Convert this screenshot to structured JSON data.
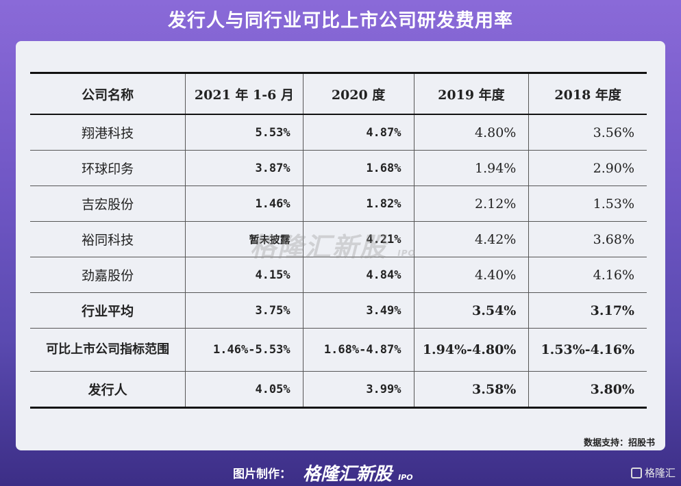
{
  "title": "发行人与同行业可比上市公司研发费用率",
  "table": {
    "headers": [
      "公司名称",
      "2021 年 1-6 月",
      "2020 度",
      "2019 年度",
      "2018 年度"
    ],
    "rows": [
      {
        "name": "翔港科技",
        "v2021": "5.53%",
        "v2020": "4.87%",
        "v2019": "4.80%",
        "v2018": "3.56%"
      },
      {
        "name": "环球印务",
        "v2021": "3.87%",
        "v2020": "1.68%",
        "v2019": "1.94%",
        "v2018": "2.90%"
      },
      {
        "name": "吉宏股份",
        "v2021": "1.46%",
        "v2020": "1.82%",
        "v2019": "2.12%",
        "v2018": "1.53%"
      },
      {
        "name": "裕同科技",
        "v2021": "暂未披露",
        "v2020": "4.21%",
        "v2019": "4.42%",
        "v2018": "3.68%"
      },
      {
        "name": "劲嘉股份",
        "v2021": "4.15%",
        "v2020": "4.84%",
        "v2019": "4.40%",
        "v2018": "4.16%"
      },
      {
        "name": "行业平均",
        "v2021": "3.75%",
        "v2020": "3.49%",
        "v2019": "3.54%",
        "v2018": "3.17%"
      },
      {
        "name": "可比上市公司指标范围",
        "v2021": "1.46%-5.53%",
        "v2020": "1.68%-4.87%",
        "v2019": "1.94%-4.80%",
        "v2018": "1.53%-4.16%"
      },
      {
        "name": "发行人",
        "v2021": "4.05%",
        "v2020": "3.99%",
        "v2019": "3.58%",
        "v2018": "3.80%"
      }
    ]
  },
  "watermark": {
    "text": "格隆汇新股",
    "sub": "IPO"
  },
  "source": "数据支持：招股书",
  "footer": {
    "credit": "图片制作：",
    "brand": "格隆汇新股",
    "brand_sub": "IPO",
    "corner_logo": "格隆汇"
  }
}
